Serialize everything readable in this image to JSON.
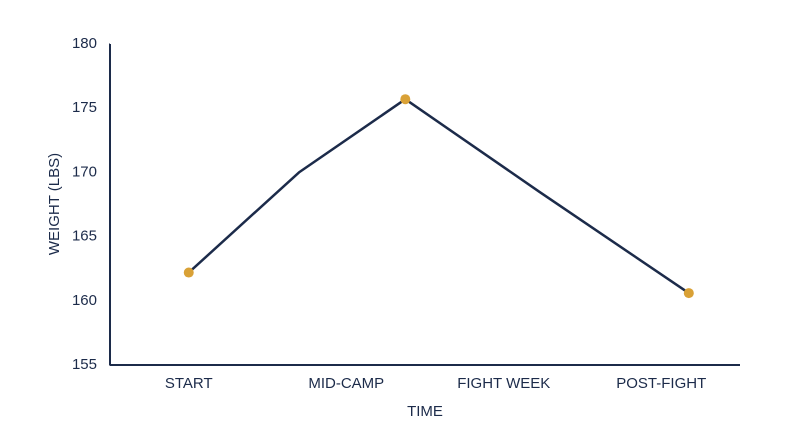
{
  "chart_data": {
    "type": "line",
    "x_label": "TIME",
    "y_label": "WEIGHT (LBS)",
    "xlim": [
      0,
      8
    ],
    "xticks": [
      {
        "value": 1,
        "label": "START"
      },
      {
        "value": 3,
        "label": "MID-CAMP"
      },
      {
        "value": 5,
        "label": "FIGHT WEEK"
      },
      {
        "value": 7,
        "label": "POST-FIGHT"
      }
    ],
    "ylim": [
      155,
      180
    ],
    "yticks": [
      155,
      160,
      165,
      170,
      175,
      180
    ],
    "grid": false,
    "series": [
      {
        "color": "#1c2b4a",
        "x": [
          1,
          2.4,
          3.75,
          5.45,
          7.35
        ],
        "values": [
          162.2,
          170,
          175.7,
          168.5,
          160.6
        ],
        "markers": false
      },
      {
        "color": "#d9a136",
        "x": [
          1,
          3.75,
          7.35
        ],
        "values": [
          162.2,
          175.7,
          160.6
        ],
        "markers": true
      }
    ]
  }
}
